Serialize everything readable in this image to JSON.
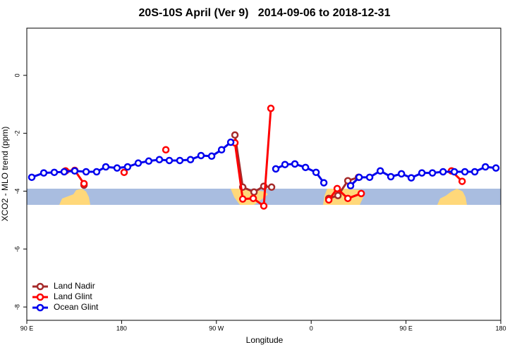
{
  "chart_data": {
    "type": "line",
    "title": "20S-10S April (Ver 9)   2014-09-06 to 2018-12-31",
    "xlabel": "Longitude",
    "ylabel": "XCO2 - MLO trend (ppm)",
    "xlim": [
      90,
      540
    ],
    "ylim": [
      -8.46,
      1.63
    ],
    "xticks": [
      {
        "value": 90,
        "label": "90 E"
      },
      180,
      {
        "value": 270,
        "label": "90 W"
      },
      {
        "value": 360,
        "label": "0"
      },
      {
        "value": 450,
        "label": "90 E"
      },
      {
        "value": 540,
        "label": "180"
      }
    ],
    "yticks": [
      0,
      -2,
      -4,
      -6,
      -8
    ],
    "legend": "bottom left",
    "series": [
      {
        "name": "Land Nadir",
        "color": "#a52a2a",
        "x": [
          144.3,
          null,
          287.6,
          295.0,
          305.7,
          315.0,
          322.4,
          null,
          376.7,
          385.4,
          394.8,
          404.9
        ],
        "values": [
          -3.79,
          null,
          -2.06,
          -3.86,
          -4.03,
          -3.83,
          -3.86,
          null,
          -4.25,
          -4.15,
          -3.64,
          -3.52
        ]
      },
      {
        "name": "Land Glint",
        "color": "#ff0000",
        "x": [
          126.8,
          135.5,
          144.3,
          null,
          182.4,
          null,
          222.0,
          null,
          287.6,
          295.0,
          305.0,
          315.0,
          321.7,
          null,
          376.7,
          384.7,
          394.8,
          407.5,
          null,
          493.2,
          503.3
        ],
        "values": [
          -3.3,
          -3.28,
          -3.74,
          null,
          -3.35,
          null,
          -2.57,
          null,
          -2.33,
          -4.27,
          -4.25,
          -4.51,
          -1.14,
          null,
          -4.3,
          -3.91,
          -4.25,
          -4.08,
          null,
          -3.3,
          -3.66
        ]
      },
      {
        "name": "Ocean Glint",
        "color": "#0000ee",
        "x": [
          94.7,
          106.1,
          116.1,
          125.5,
          135.5,
          146.3,
          156.3,
          165.0,
          175.7,
          185.7,
          195.8,
          205.8,
          215.9,
          225.3,
          235.3,
          245.4,
          255.4,
          265.5,
          274.9,
          283.6,
          null,
          326.4,
          335.1,
          344.5,
          354.6,
          364.6,
          372.0,
          null,
          397.4,
          405.5,
          415.5,
          425.6,
          435.6,
          445.7,
          455.0,
          465.1,
          475.1,
          485.2,
          495.9,
          505.9,
          515.3,
          525.4,
          535.4
        ],
        "values": [
          -3.52,
          -3.37,
          -3.35,
          -3.33,
          -3.3,
          -3.33,
          -3.33,
          -3.16,
          -3.2,
          -3.16,
          -3.03,
          -2.96,
          -2.91,
          -2.94,
          -2.94,
          -2.91,
          -2.77,
          -2.79,
          -2.57,
          -2.31,
          null,
          -3.23,
          -3.08,
          -3.06,
          -3.18,
          -3.35,
          -3.71,
          null,
          -3.81,
          -3.52,
          -3.52,
          -3.3,
          -3.5,
          -3.4,
          -3.54,
          -3.37,
          -3.37,
          -3.33,
          -3.33,
          -3.33,
          -3.33,
          -3.16,
          -3.2
        ]
      }
    ]
  }
}
